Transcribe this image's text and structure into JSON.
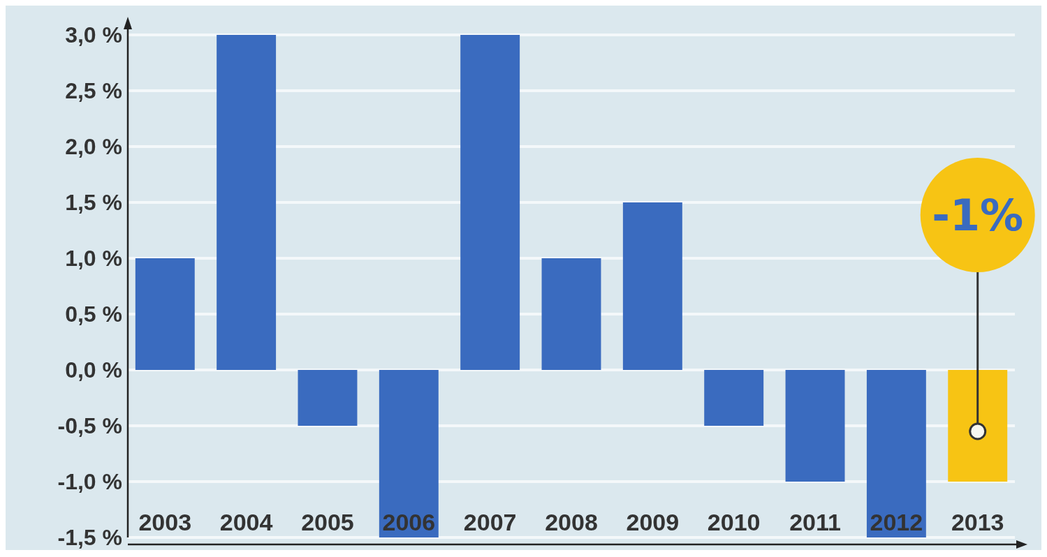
{
  "chart_data": {
    "type": "bar",
    "categories": [
      "2003",
      "2004",
      "2005",
      "2006",
      "2007",
      "2008",
      "2009",
      "2010",
      "2011",
      "2012",
      "2013"
    ],
    "values": [
      1.0,
      3.0,
      -0.5,
      -1.5,
      3.0,
      1.0,
      1.5,
      -0.5,
      -1.0,
      -1.5,
      -1.0
    ],
    "colors": [
      "#3a6bbf",
      "#3a6bbf",
      "#3a6bbf",
      "#3a6bbf",
      "#3a6bbf",
      "#3a6bbf",
      "#3a6bbf",
      "#3a6bbf",
      "#3a6bbf",
      "#3a6bbf",
      "#f7c414"
    ],
    "ylim": [
      -1.5,
      3.0
    ],
    "yticks": [
      {
        "value": -1.5,
        "label": "-1,5 %"
      },
      {
        "value": -1.0,
        "label": "-1,0 %"
      },
      {
        "value": -0.5,
        "label": "-0,5 %"
      },
      {
        "value": 0,
        "label": "0,0 %"
      },
      {
        "value": 0.5,
        "label": "0,5 %"
      },
      {
        "value": 1.0,
        "label": "1,0 %"
      },
      {
        "value": 1.5,
        "label": "1,5 %"
      },
      {
        "value": 2.0,
        "label": "2,0 %"
      },
      {
        "value": 2.5,
        "label": "2,5 %"
      },
      {
        "value": 3.0,
        "label": "3,0 %"
      }
    ],
    "grid": "y",
    "annotations": [
      "-1%"
    ]
  }
}
